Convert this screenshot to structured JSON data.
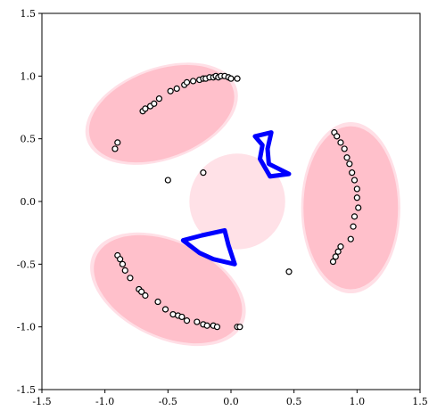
{
  "chart_data": {
    "type": "scatter",
    "title": "",
    "xlabel": "",
    "ylabel": "",
    "xlim": [
      -1.5,
      1.5
    ],
    "ylim": [
      -1.5,
      1.5
    ],
    "grid": false,
    "legend": "none",
    "xticks": [
      "-1.5",
      "-1.0",
      "-0.5",
      "0.0",
      "0.5",
      "1.0",
      "1.5"
    ],
    "yticks": [
      "-1.5",
      "-1.0",
      "-0.5",
      "0.0",
      "0.5",
      "1.0",
      "1.5"
    ],
    "colors": {
      "blob_fill": "#ffc0cb",
      "blob_light": "#ffdce3",
      "blue_shape": "#0000ff",
      "marker_edge": "#000000",
      "marker_fill": "#ffffff"
    },
    "regions": [
      {
        "center": [
          -0.55,
          0.7
        ],
        "width": 1.2,
        "height": 0.7,
        "angle_deg": 20
      },
      {
        "center": [
          0.95,
          -0.05
        ],
        "width": 0.75,
        "height": 1.3,
        "angle_deg": 0
      },
      {
        "center": [
          -0.5,
          -0.7
        ],
        "width": 1.25,
        "height": 0.75,
        "angle_deg": -25
      }
    ],
    "blue_shapes": [
      {
        "points": [
          [
            0.19,
            0.52
          ],
          [
            0.32,
            0.55
          ],
          [
            0.29,
            0.42
          ],
          [
            0.3,
            0.3
          ],
          [
            0.46,
            0.22
          ],
          [
            0.31,
            0.2
          ],
          [
            0.23,
            0.34
          ],
          [
            0.25,
            0.45
          ]
        ]
      },
      {
        "points": [
          [
            -0.38,
            -0.31
          ],
          [
            -0.23,
            -0.27
          ],
          [
            -0.05,
            -0.23
          ],
          [
            -0.02,
            -0.35
          ],
          [
            0.03,
            -0.5
          ],
          [
            -0.14,
            -0.46
          ],
          [
            -0.25,
            -0.41
          ]
        ]
      }
    ],
    "series": [
      {
        "x": [
          -0.7,
          -0.68,
          -0.64,
          -0.61,
          -0.57,
          -0.48,
          -0.43,
          -0.37,
          -0.35,
          -0.3,
          -0.25,
          -0.22,
          -0.2,
          -0.17,
          -0.14,
          -0.12,
          -0.1,
          -0.08,
          -0.05,
          -0.02,
          0.0,
          0.05,
          -0.9,
          -0.92,
          -0.5,
          -0.22,
          0.82,
          0.84,
          0.87,
          0.9,
          0.92,
          0.94,
          0.96,
          0.98,
          1.0,
          1.0,
          1.01,
          0.98,
          0.97,
          0.95,
          0.87,
          0.85,
          0.83,
          0.81,
          0.46,
          -0.9,
          -0.88,
          -0.86,
          -0.84,
          -0.8,
          -0.73,
          -0.71,
          -0.68,
          -0.58,
          -0.52,
          -0.46,
          -0.42,
          -0.39,
          -0.35,
          -0.27,
          -0.22,
          -0.19,
          -0.14,
          -0.11,
          0.05,
          0.07
        ],
        "y": [
          0.72,
          0.74,
          0.76,
          0.78,
          0.82,
          0.88,
          0.9,
          0.93,
          0.95,
          0.96,
          0.97,
          0.98,
          0.98,
          0.99,
          0.99,
          1.0,
          0.99,
          1.0,
          1.0,
          0.99,
          0.98,
          0.98,
          0.47,
          0.42,
          0.17,
          0.23,
          0.55,
          0.52,
          0.47,
          0.42,
          0.35,
          0.3,
          0.23,
          0.17,
          0.1,
          0.03,
          -0.05,
          -0.12,
          -0.2,
          -0.3,
          -0.36,
          -0.4,
          -0.44,
          -0.48,
          -0.56,
          -0.43,
          -0.46,
          -0.5,
          -0.55,
          -0.61,
          -0.7,
          -0.72,
          -0.75,
          -0.8,
          -0.86,
          -0.9,
          -0.91,
          -0.92,
          -0.95,
          -0.96,
          -0.98,
          -0.99,
          -0.99,
          -1.0,
          -1.0,
          -1.0
        ]
      }
    ]
  }
}
